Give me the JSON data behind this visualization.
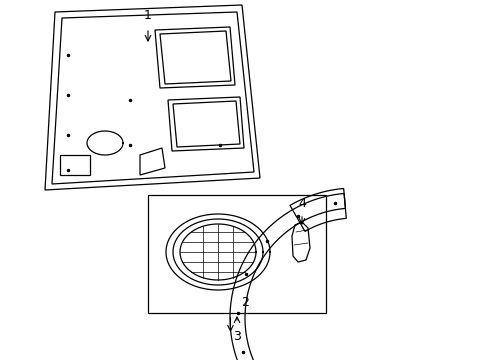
{
  "background_color": "#ffffff",
  "line_color": "#000000",
  "label_1": "1",
  "label_2": "2",
  "label_3": "3",
  "label_4": "4",
  "fig_width": 4.89,
  "fig_height": 3.6,
  "dpi": 100
}
